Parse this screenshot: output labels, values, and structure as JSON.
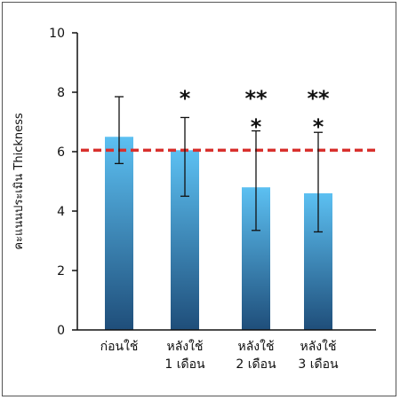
{
  "chart_data": {
    "type": "bar",
    "title": "",
    "xlabel": "",
    "ylabel": "คะแนนประเมิน Thickness",
    "ylim": [
      0,
      10
    ],
    "yticks": [
      "0",
      "2",
      "4",
      "6",
      "8",
      "10"
    ],
    "categories": [
      [
        "ก่อนใช้"
      ],
      [
        "หลังใช้",
        "1 เดือน"
      ],
      [
        "หลังใช้",
        "2 เดือน"
      ],
      [
        "หลังใช้",
        "3 เดือน"
      ]
    ],
    "values": [
      6.5,
      6.05,
      4.8,
      4.6
    ],
    "error_high": [
      7.85,
      7.15,
      6.7,
      6.65
    ],
    "error_low": [
      5.6,
      4.5,
      3.35,
      3.3
    ],
    "significance": [
      [],
      [
        "*"
      ],
      [
        "**",
        "*"
      ],
      [
        "**",
        "*"
      ]
    ],
    "reference_line": 6.05,
    "grid": false,
    "legend": "none",
    "colors": {
      "bar_top": "#5cc0f2",
      "bar_bottom": "#1f4e7a",
      "reference_line": "#d8302d",
      "axis": "#111111",
      "frame": "#555555"
    }
  }
}
